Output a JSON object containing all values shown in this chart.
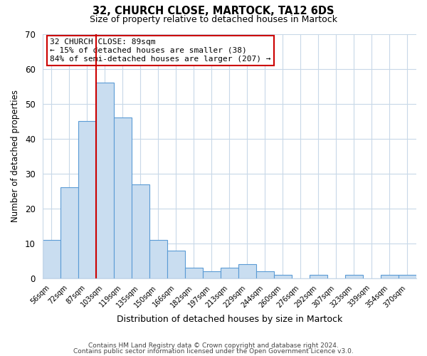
{
  "title": "32, CHURCH CLOSE, MARTOCK, TA12 6DS",
  "subtitle": "Size of property relative to detached houses in Martock",
  "xlabel": "Distribution of detached houses by size in Martock",
  "ylabel": "Number of detached properties",
  "bin_labels": [
    "56sqm",
    "72sqm",
    "87sqm",
    "103sqm",
    "119sqm",
    "135sqm",
    "150sqm",
    "166sqm",
    "182sqm",
    "197sqm",
    "213sqm",
    "229sqm",
    "244sqm",
    "260sqm",
    "276sqm",
    "292sqm",
    "307sqm",
    "323sqm",
    "339sqm",
    "354sqm",
    "370sqm"
  ],
  "bar_heights": [
    11,
    26,
    45,
    56,
    46,
    27,
    11,
    8,
    3,
    2,
    3,
    4,
    2,
    1,
    0,
    1,
    0,
    1,
    0,
    1,
    1
  ],
  "bar_color": "#c9ddf0",
  "bar_edge_color": "#5b9bd5",
  "highlight_bin_index": 2,
  "highlight_line_color": "#cc0000",
  "ylim": [
    0,
    70
  ],
  "yticks": [
    0,
    10,
    20,
    30,
    40,
    50,
    60,
    70
  ],
  "annotation_title": "32 CHURCH CLOSE: 89sqm",
  "annotation_line1": "← 15% of detached houses are smaller (38)",
  "annotation_line2": "84% of semi-detached houses are larger (207) →",
  "annotation_box_color": "#ffffff",
  "annotation_box_edge_color": "#cc0000",
  "footer_line1": "Contains HM Land Registry data © Crown copyright and database right 2024.",
  "footer_line2": "Contains public sector information licensed under the Open Government Licence v3.0.",
  "background_color": "#ffffff",
  "grid_color": "#c8d8e8"
}
